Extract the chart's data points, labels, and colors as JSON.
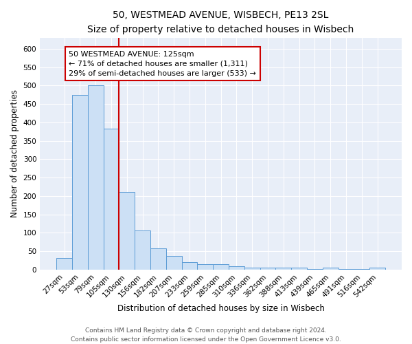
{
  "title": "50, WESTMEAD AVENUE, WISBECH, PE13 2SL",
  "subtitle": "Size of property relative to detached houses in Wisbech",
  "xlabel": "Distribution of detached houses by size in Wisbech",
  "ylabel": "Number of detached properties",
  "categories": [
    "27sqm",
    "53sqm",
    "79sqm",
    "105sqm",
    "130sqm",
    "156sqm",
    "182sqm",
    "207sqm",
    "233sqm",
    "259sqm",
    "285sqm",
    "310sqm",
    "336sqm",
    "362sqm",
    "388sqm",
    "413sqm",
    "439sqm",
    "465sqm",
    "491sqm",
    "516sqm",
    "542sqm"
  ],
  "values": [
    32,
    475,
    500,
    383,
    211,
    106,
    57,
    38,
    21,
    15,
    14,
    9,
    6,
    5,
    5,
    5,
    1,
    5,
    1,
    2,
    5
  ],
  "bar_color": "#cce0f5",
  "bar_edge_color": "#5b9bd5",
  "red_line_color": "#cc0000",
  "red_line_index": 4,
  "annotation_text": "50 WESTMEAD AVENUE: 125sqm\n← 71% of detached houses are smaller (1,311)\n29% of semi-detached houses are larger (533) →",
  "annotation_box_color": "#ffffff",
  "annotation_box_edge": "#cc0000",
  "ylim": [
    0,
    630
  ],
  "yticks": [
    0,
    50,
    100,
    150,
    200,
    250,
    300,
    350,
    400,
    450,
    500,
    550,
    600
  ],
  "footer_line1": "Contains HM Land Registry data © Crown copyright and database right 2024.",
  "footer_line2": "Contains public sector information licensed under the Open Government Licence v3.0.",
  "title_fontsize": 10,
  "subtitle_fontsize": 9,
  "axis_label_fontsize": 8.5,
  "tick_fontsize": 7.5,
  "annotation_fontsize": 8,
  "footer_fontsize": 6.5,
  "bg_color": "#e8eef8"
}
